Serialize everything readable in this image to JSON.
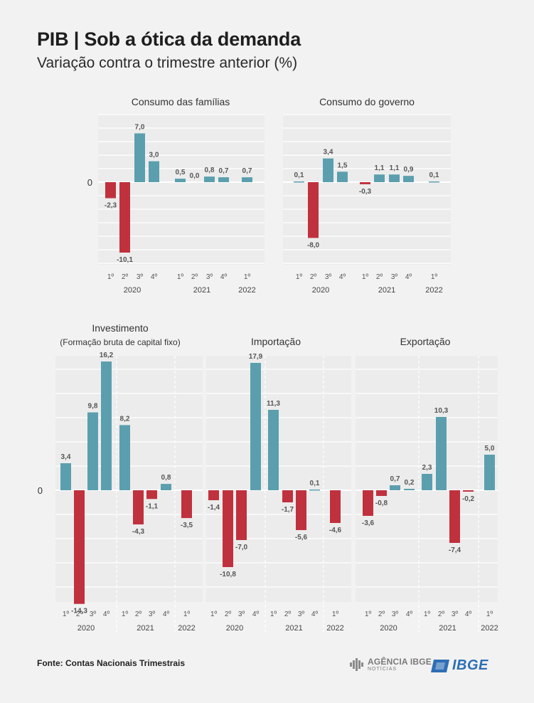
{
  "header": {
    "title": "PIB | Sob a ótica da demanda",
    "subtitle": "Variação contra o trimestre anterior (%)"
  },
  "footer": {
    "source": "Fonte: Contas Nacionais Trimestrais",
    "agencia_main": "AGÊNCIA IBGE",
    "agencia_sub": "NOTÍCIAS",
    "ibge": "IBGE"
  },
  "colors": {
    "positive": "#5b9fae",
    "negative": "#c0313e",
    "grid": "#ffffff"
  },
  "chart_data": [
    {
      "type": "bar",
      "title": "Consumo das famílias",
      "categories": [
        "1º",
        "2º",
        "3º",
        "4º",
        "1º",
        "2º",
        "3º",
        "4º",
        "1º"
      ],
      "years": [
        "2020",
        "2020",
        "2020",
        "2020",
        "2021",
        "2021",
        "2021",
        "2021",
        "2022"
      ],
      "values": [
        -2.3,
        -10.1,
        7.0,
        3.0,
        0.5,
        0.0,
        0.8,
        0.7,
        0.7
      ],
      "labels": [
        "-2,3",
        "-10,1",
        "7,0",
        "3,0",
        "0,5",
        "0,0",
        "0,8",
        "0,7",
        "0,7"
      ],
      "zero_label": "0",
      "ylim": [
        -13,
        10
      ]
    },
    {
      "type": "bar",
      "title": "Consumo do governo",
      "categories": [
        "1º",
        "2º",
        "3º",
        "4º",
        "1º",
        "2º",
        "3º",
        "4º",
        "1º"
      ],
      "years": [
        "2020",
        "2020",
        "2020",
        "2020",
        "2021",
        "2021",
        "2021",
        "2021",
        "2022"
      ],
      "values": [
        0.1,
        -8.0,
        3.4,
        1.5,
        -0.3,
        1.1,
        1.1,
        0.9,
        0.1
      ],
      "labels": [
        "0,1",
        "-8,0",
        "3,4",
        "1,5",
        "-0,3",
        "1,1",
        "1,1",
        "0,9",
        "0,1"
      ],
      "ylim": [
        -10,
        8
      ]
    },
    {
      "type": "bar",
      "title": "Investimento",
      "title2": "(Formação bruta de capital fixo)",
      "categories": [
        "1º",
        "2º",
        "3º",
        "4º",
        "1º",
        "2º",
        "3º",
        "4º",
        "1º"
      ],
      "years": [
        "2020",
        "2020",
        "2020",
        "2020",
        "2021",
        "2021",
        "2021",
        "2021",
        "2022"
      ],
      "values": [
        3.4,
        -14.3,
        9.8,
        16.2,
        8.2,
        -4.3,
        -1.1,
        0.8,
        -3.5
      ],
      "labels": [
        "3,4",
        "-14,3",
        "9,8",
        "16,2",
        "8,2",
        "-4,3",
        "-1,1",
        "0,8",
        "-3,5"
      ],
      "zero_label": "0",
      "ylim": [
        -16,
        18
      ]
    },
    {
      "type": "bar",
      "title": "Importação",
      "categories": [
        "1º",
        "2º",
        "3º",
        "4º",
        "1º",
        "2º",
        "3º",
        "4º",
        "1º"
      ],
      "years": [
        "2020",
        "2020",
        "2020",
        "2020",
        "2021",
        "2021",
        "2021",
        "2021",
        "2022"
      ],
      "values": [
        -1.4,
        -10.8,
        -7.0,
        17.9,
        11.3,
        -1.7,
        -5.6,
        0.1,
        -4.6
      ],
      "labels": [
        "-1,4",
        "-10,8",
        "-7,0",
        "17,9",
        "11,3",
        "-1,7",
        "-5,6",
        "0,1",
        "-4,6"
      ],
      "ylim": [
        -16,
        18
      ]
    },
    {
      "type": "bar",
      "title": "Exportação",
      "categories": [
        "1º",
        "2º",
        "3º",
        "4º",
        "1º",
        "2º",
        "3º",
        "4º",
        "1º"
      ],
      "years": [
        "2020",
        "2020",
        "2020",
        "2020",
        "2021",
        "2021",
        "2021",
        "2021",
        "2022"
      ],
      "values": [
        -3.6,
        -0.8,
        0.7,
        0.2,
        2.3,
        10.3,
        -7.4,
        -0.2,
        5.0
      ],
      "labels": [
        "-3,6",
        "-0,8",
        "0,7",
        "0,2",
        "2,3",
        "10,3",
        "-7,4",
        "-0,2",
        "5,0"
      ],
      "ylim": [
        -16,
        18
      ]
    }
  ]
}
